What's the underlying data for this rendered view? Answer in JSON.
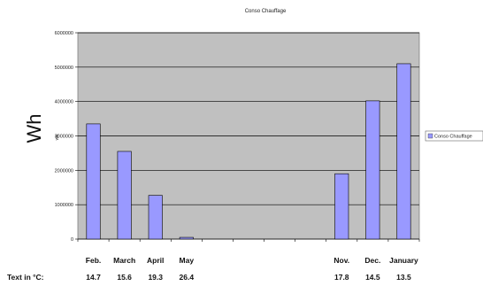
{
  "chart_data": {
    "type": "bar",
    "title": "Conso Chauffage",
    "ylabel_small": "Wh",
    "ylabel_big": "Wh",
    "categories": [
      "1",
      "2",
      "3",
      "4",
      "5",
      "6",
      "7",
      "8",
      "9",
      "10",
      "11"
    ],
    "series": [
      {
        "name": "Conso Chauffage",
        "color": "#9999ff",
        "values": [
          3350000,
          2550000,
          1270000,
          50000,
          0,
          0,
          0,
          0,
          1900000,
          4020000,
          5100000
        ]
      }
    ],
    "ylim": [
      0,
      6000000
    ],
    "yticks": [
      "0",
      "1000000",
      "2000000",
      "3000000",
      "4000000",
      "5000000",
      "6000000"
    ],
    "grid": true,
    "plot_background": "#c0c0c0",
    "legend": "right",
    "month_labels": [
      "Feb.",
      "March",
      "April",
      "May",
      "",
      "",
      "",
      "",
      "Nov.",
      "Dec.",
      "January"
    ],
    "temperature_label": "Text in °C:",
    "temperatures": [
      "14.7",
      "15.6",
      "19.3",
      "26.4",
      "",
      "",
      "",
      "",
      "17.8",
      "14.5",
      "13.5"
    ]
  }
}
